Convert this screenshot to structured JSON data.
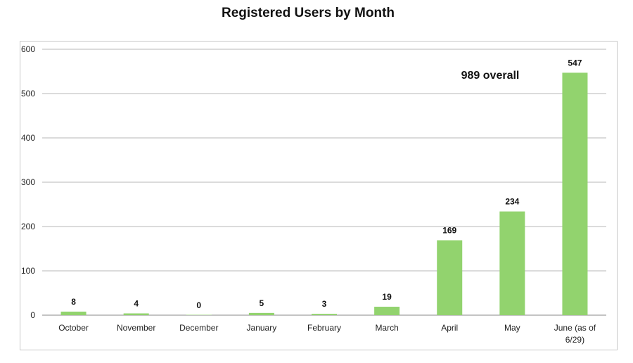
{
  "chart_data": {
    "type": "bar",
    "title": "Registered Users by Month",
    "xlabel": "",
    "ylabel": "",
    "ylim": [
      0,
      600
    ],
    "yticks": [
      0,
      100,
      200,
      300,
      400,
      500,
      600
    ],
    "grid": true,
    "categories": [
      [
        "October"
      ],
      [
        "November"
      ],
      [
        "December"
      ],
      [
        "January"
      ],
      [
        "February"
      ],
      [
        "March"
      ],
      [
        "April"
      ],
      [
        "May"
      ],
      [
        "June (as of",
        "6/29)"
      ]
    ],
    "series": [
      {
        "values": [
          8,
          4,
          0,
          5,
          3,
          19,
          169,
          234,
          547
        ]
      }
    ],
    "annotation": "989 overall",
    "colors": {
      "bar": "#92d36e",
      "grid": "#b7b7b7",
      "axis": "#888888"
    }
  }
}
